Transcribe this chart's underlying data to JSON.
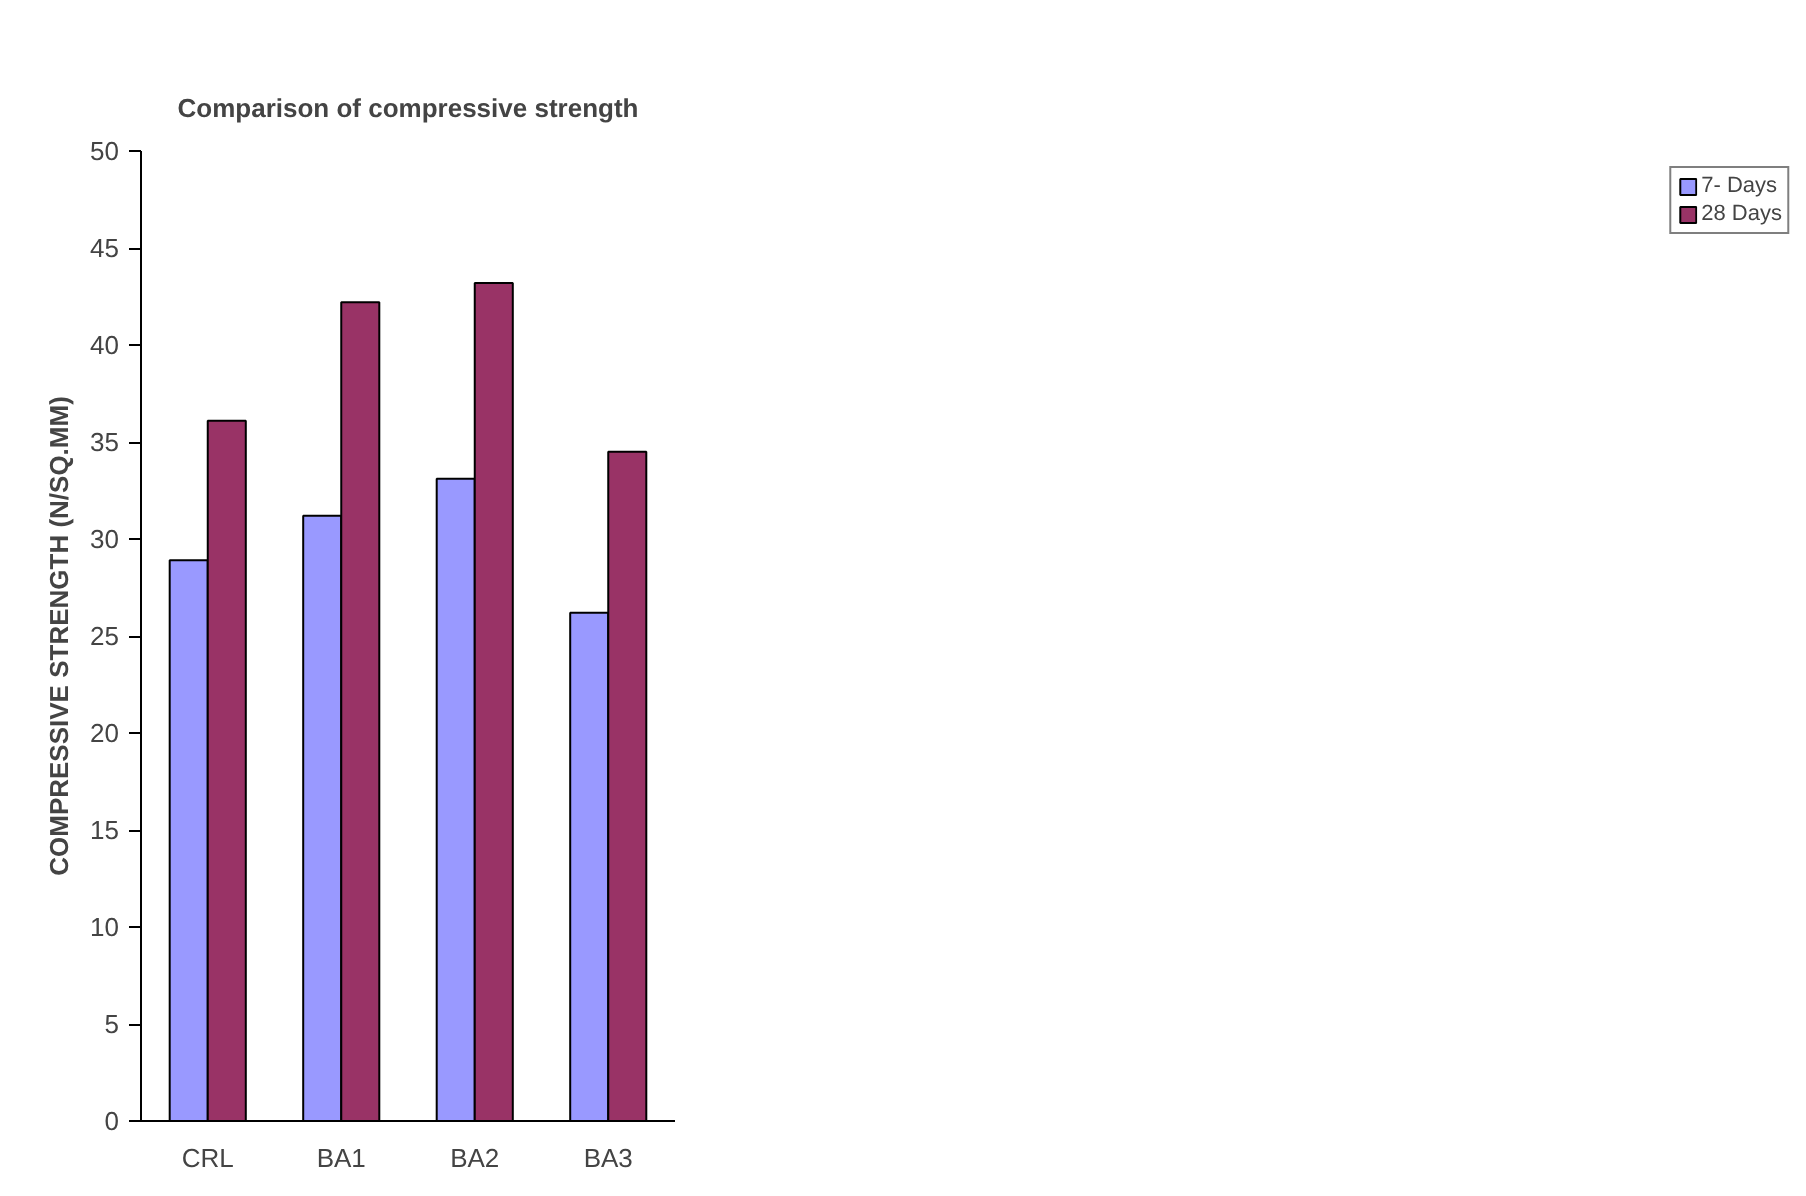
{
  "chart_data": {
    "type": "bar",
    "title": "Comparison of compressive strength",
    "ylabel": "COMPRESSIVE STRENGTH (N/SQ.MM)",
    "categories": [
      "CRL",
      "BA1",
      "BA2",
      "BA3"
    ],
    "series": [
      {
        "name": "7- Days",
        "color": "#9999ff",
        "values": [
          28.9,
          31.2,
          33.1,
          26.2
        ]
      },
      {
        "name": "28 Days",
        "color": "#993366",
        "values": [
          36.1,
          42.2,
          43.2,
          34.5
        ]
      }
    ],
    "ylim": [
      0,
      50
    ],
    "yticks": [
      0,
      5,
      10,
      15,
      20,
      25,
      30,
      35,
      40,
      45,
      50
    ],
    "grid": false,
    "legend": "right"
  }
}
